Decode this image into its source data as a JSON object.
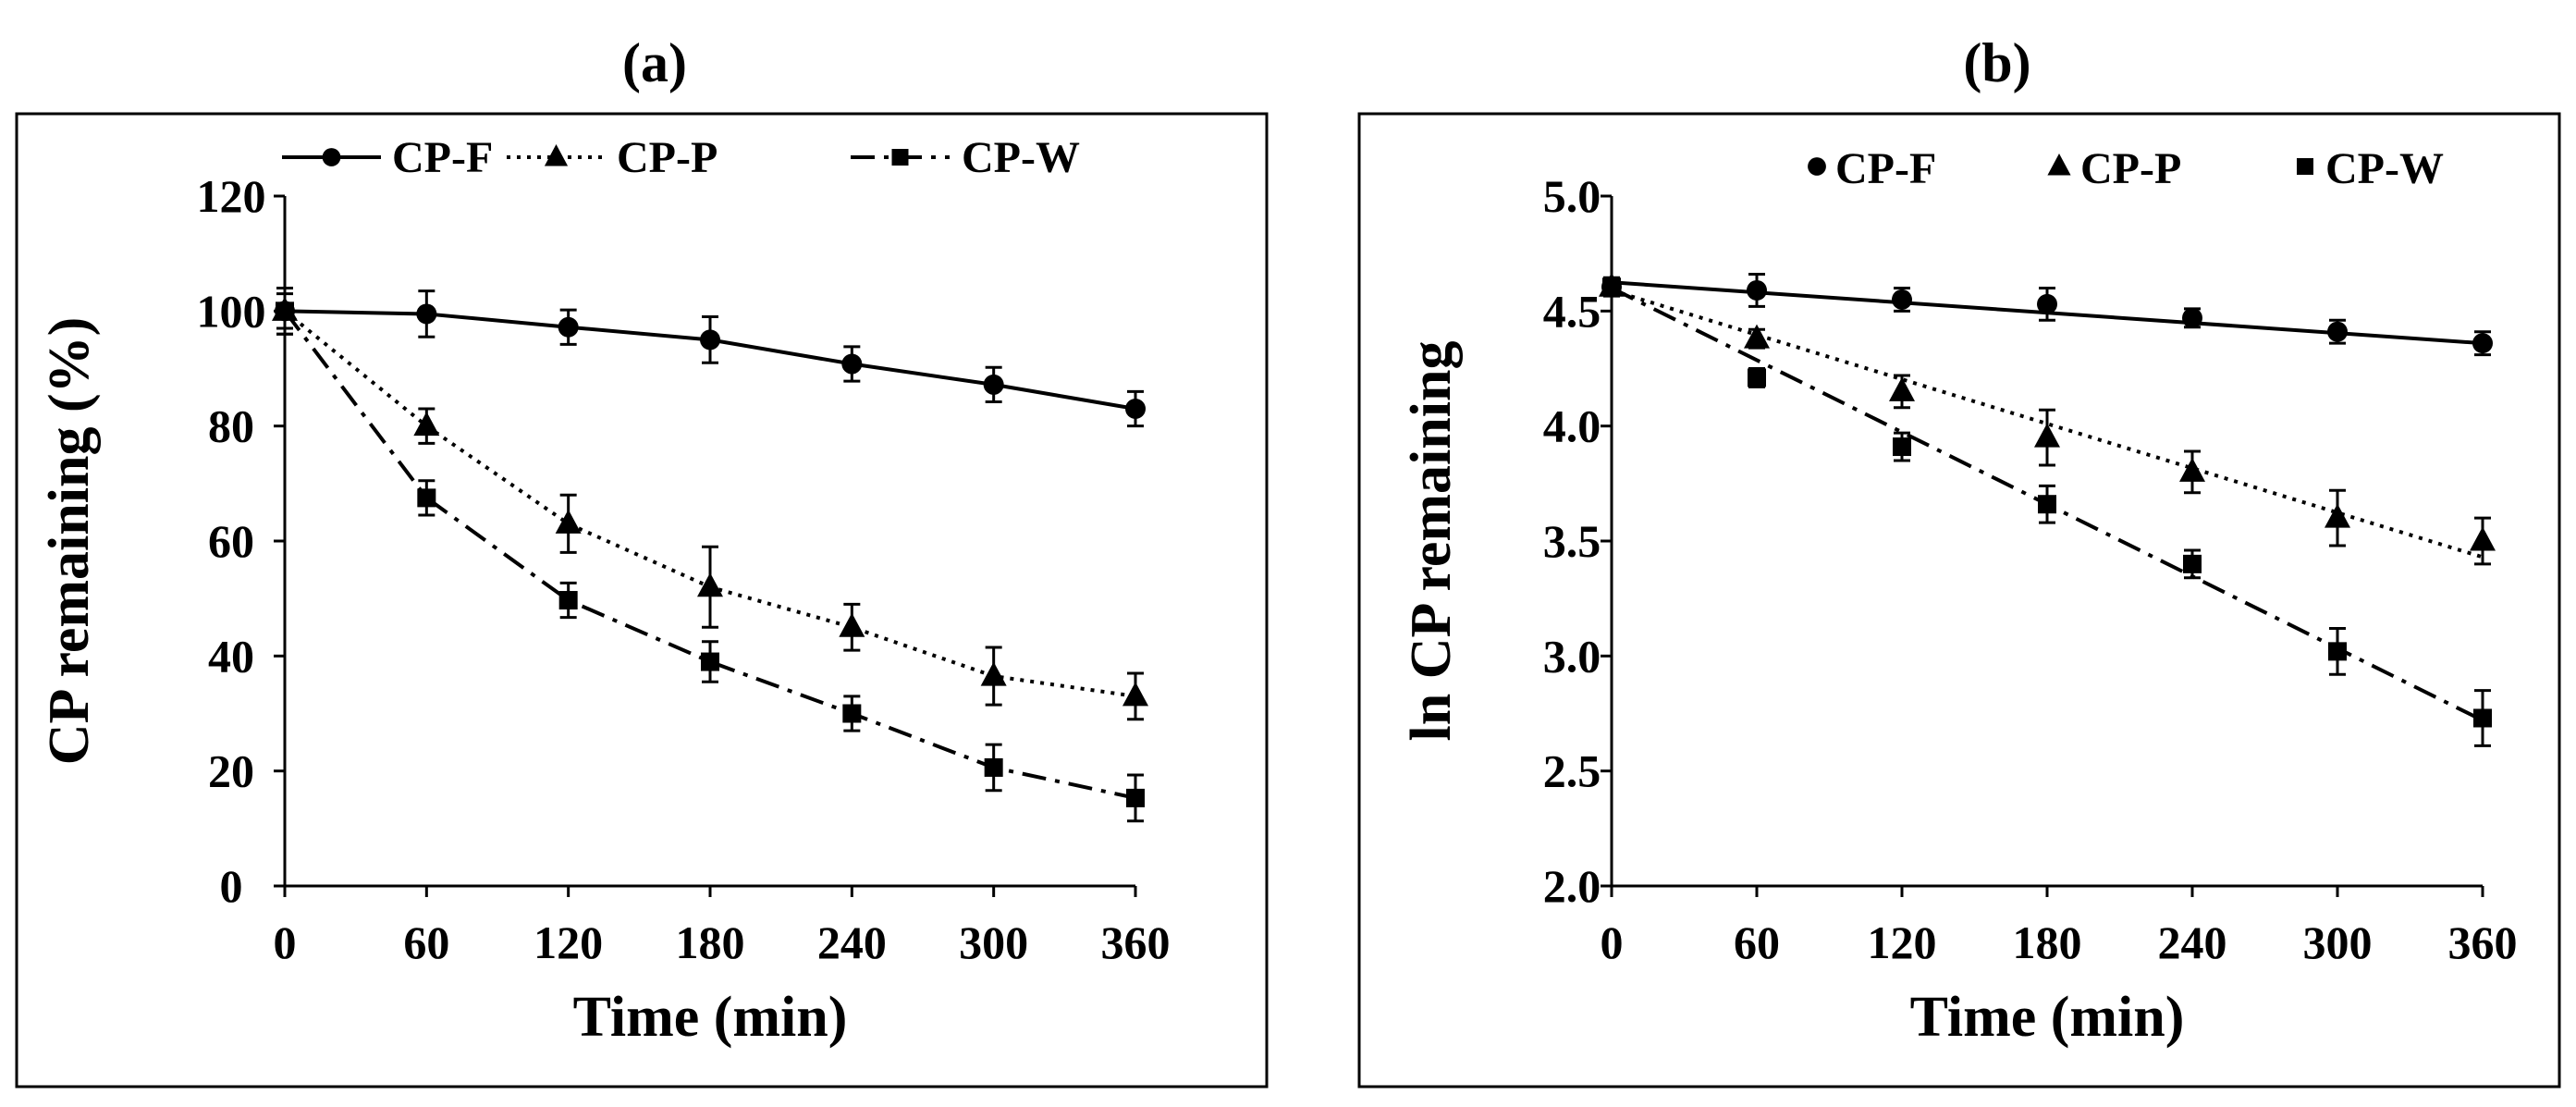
{
  "chart_data": [
    {
      "panel_label": "(a)",
      "type": "line",
      "x": [
        0,
        60,
        120,
        180,
        240,
        300,
        360
      ],
      "xticks": [
        "0",
        "60",
        "120",
        "180",
        "240",
        "300",
        "360"
      ],
      "xlim": [
        0,
        360
      ],
      "ylim": [
        0,
        120
      ],
      "yticks": [
        "0",
        "20",
        "40",
        "60",
        "80",
        "100",
        "120"
      ],
      "xlabel": "Time (min)",
      "ylabel": "CP remaining (%)",
      "legend_position": "top",
      "series": [
        {
          "name": "CP-F",
          "marker": "circle",
          "line": "solid",
          "values": [
            100,
            99.5,
            97.2,
            95,
            90.8,
            87.2,
            83
          ],
          "errors": [
            3,
            4,
            3,
            4,
            3,
            3,
            3
          ]
        },
        {
          "name": "CP-P",
          "marker": "triangle",
          "line": "dotted",
          "values": [
            100,
            80,
            63,
            52,
            45,
            36.5,
            33
          ],
          "errors": [
            4,
            3,
            5,
            7,
            4,
            5,
            4
          ]
        },
        {
          "name": "CP-W",
          "marker": "square",
          "line": "dashdot",
          "values": [
            100,
            67.5,
            49.7,
            39,
            30,
            20.6,
            15.3
          ],
          "errors": [
            4,
            3,
            3,
            3.5,
            3,
            4,
            4
          ]
        }
      ]
    },
    {
      "panel_label": "(b)",
      "type": "scatter",
      "x": [
        0,
        60,
        120,
        180,
        240,
        300,
        360
      ],
      "xticks": [
        "0",
        "60",
        "120",
        "180",
        "240",
        "300",
        "360"
      ],
      "xlim": [
        0,
        360
      ],
      "ylim": [
        2.0,
        5.0
      ],
      "yticks": [
        "2.0",
        "2.5",
        "3.0",
        "3.5",
        "4.0",
        "4.5",
        "5.0"
      ],
      "xlabel": "Time (min)",
      "ylabel": "ln CP remaining",
      "legend_position": "top",
      "trendlines": "linear",
      "series": [
        {
          "name": "CP-F",
          "marker": "circle",
          "line": "solid",
          "values": [
            4.605,
            4.59,
            4.55,
            4.53,
            4.47,
            4.41,
            4.36
          ],
          "errors": [
            0.03,
            0.07,
            0.05,
            0.07,
            0.04,
            0.05,
            0.05
          ],
          "trend": [
            4.625,
            4.36
          ]
        },
        {
          "name": "CP-P",
          "marker": "triangle",
          "line": "dotted",
          "values": [
            4.605,
            4.38,
            4.15,
            3.95,
            3.8,
            3.6,
            3.5
          ],
          "errors": [
            0.04,
            0.04,
            0.07,
            0.12,
            0.09,
            0.12,
            0.1
          ],
          "trend": [
            4.59,
            3.43
          ]
        },
        {
          "name": "CP-W",
          "marker": "square",
          "line": "dashdot",
          "values": [
            4.605,
            4.21,
            3.91,
            3.66,
            3.4,
            3.02,
            2.73
          ],
          "errors": [
            0.03,
            0.04,
            0.06,
            0.08,
            0.06,
            0.1,
            0.12
          ],
          "trend": [
            4.6,
            2.72
          ]
        }
      ]
    }
  ]
}
